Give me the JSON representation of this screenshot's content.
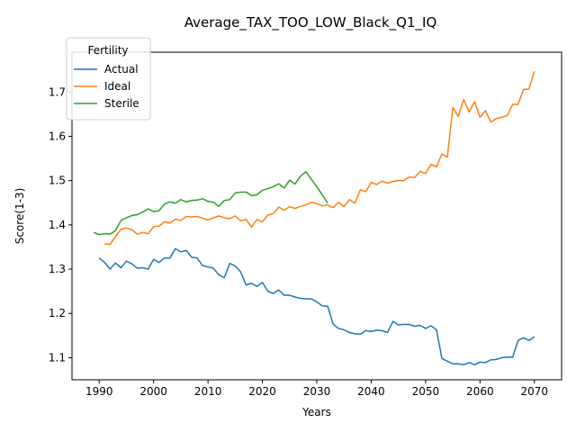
{
  "chart_data": {
    "type": "line",
    "title": "Average_TAX_TOO_LOW_Black_Q1_IQ",
    "xlabel": "Years",
    "ylabel": "Score(1-3)",
    "xlim": [
      1985,
      2075
    ],
    "ylim": [
      1.05,
      1.79
    ],
    "xticks": [
      1990,
      2000,
      2010,
      2020,
      2030,
      2040,
      2050,
      2060,
      2070
    ],
    "yticks": [
      1.1,
      1.2,
      1.3,
      1.4,
      1.5,
      1.6,
      1.7
    ],
    "grid": false,
    "legend": {
      "title": "Fertility",
      "position": "top-left"
    },
    "series": [
      {
        "name": "Actual",
        "color": "#1f77b4",
        "x": [
          1990,
          1991,
          1992,
          1993,
          1994,
          1995,
          1996,
          1997,
          1998,
          1999,
          2000,
          2001,
          2002,
          2003,
          2004,
          2005,
          2006,
          2007,
          2008,
          2009,
          2010,
          2011,
          2012,
          2013,
          2014,
          2015,
          2016,
          2017,
          2018,
          2019,
          2020,
          2021,
          2022,
          2023,
          2024,
          2025,
          2026,
          2027,
          2028,
          2029,
          2030,
          2031,
          2032,
          2033,
          2034,
          2035,
          2036,
          2037,
          2038,
          2039,
          2040,
          2041,
          2042,
          2043,
          2044,
          2045,
          2046,
          2047,
          2048,
          2049,
          2050,
          2051,
          2052,
          2053,
          2054,
          2055,
          2056,
          2057,
          2058,
          2059,
          2060,
          2061,
          2062,
          2063,
          2064,
          2065,
          2066,
          2067,
          2068,
          2069,
          2070
        ],
        "values": [
          1.325,
          1.315,
          1.3,
          1.314,
          1.303,
          1.318,
          1.312,
          1.302,
          1.303,
          1.3,
          1.322,
          1.315,
          1.325,
          1.325,
          1.346,
          1.339,
          1.342,
          1.327,
          1.325,
          1.308,
          1.305,
          1.302,
          1.287,
          1.281,
          1.313,
          1.307,
          1.294,
          1.264,
          1.268,
          1.261,
          1.27,
          1.25,
          1.245,
          1.253,
          1.241,
          1.241,
          1.237,
          1.234,
          1.233,
          1.233,
          1.226,
          1.217,
          1.216,
          1.176,
          1.166,
          1.163,
          1.157,
          1.154,
          1.153,
          1.161,
          1.159,
          1.162,
          1.161,
          1.157,
          1.182,
          1.174,
          1.175,
          1.175,
          1.171,
          1.173,
          1.166,
          1.172,
          1.163,
          1.098,
          1.092,
          1.086,
          1.086,
          1.084,
          1.089,
          1.084,
          1.09,
          1.089,
          1.095,
          1.096,
          1.1,
          1.101,
          1.101,
          1.139,
          1.145,
          1.139,
          1.147
        ]
      },
      {
        "name": "Ideal",
        "color": "#ff7f0e",
        "x": [
          1991,
          1992,
          1993,
          1994,
          1995,
          1996,
          1997,
          1998,
          1999,
          2000,
          2001,
          2002,
          2003,
          2004,
          2005,
          2006,
          2007,
          2008,
          2009,
          2010,
          2011,
          2012,
          2013,
          2014,
          2015,
          2016,
          2017,
          2018,
          2019,
          2020,
          2021,
          2022,
          2023,
          2024,
          2025,
          2026,
          2027,
          2028,
          2029,
          2030,
          2031,
          2032,
          2033,
          2034,
          2035,
          2036,
          2037,
          2038,
          2039,
          2040,
          2041,
          2042,
          2043,
          2044,
          2045,
          2046,
          2047,
          2048,
          2049,
          2050,
          2051,
          2052,
          2053,
          2054,
          2055,
          2056,
          2057,
          2058,
          2059,
          2060,
          2061,
          2062,
          2063,
          2064,
          2065,
          2066,
          2067,
          2068,
          2069,
          2070
        ],
        "values": [
          1.357,
          1.356,
          1.374,
          1.39,
          1.393,
          1.389,
          1.379,
          1.383,
          1.38,
          1.396,
          1.397,
          1.407,
          1.404,
          1.413,
          1.41,
          1.419,
          1.418,
          1.419,
          1.415,
          1.411,
          1.416,
          1.42,
          1.416,
          1.414,
          1.42,
          1.409,
          1.412,
          1.395,
          1.412,
          1.407,
          1.422,
          1.425,
          1.44,
          1.433,
          1.441,
          1.437,
          1.442,
          1.445,
          1.451,
          1.448,
          1.443,
          1.445,
          1.439,
          1.451,
          1.441,
          1.457,
          1.449,
          1.479,
          1.475,
          1.496,
          1.491,
          1.499,
          1.494,
          1.498,
          1.5,
          1.5,
          1.508,
          1.507,
          1.521,
          1.516,
          1.537,
          1.531,
          1.56,
          1.553,
          1.665,
          1.645,
          1.683,
          1.655,
          1.678,
          1.643,
          1.658,
          1.632,
          1.64,
          1.643,
          1.647,
          1.672,
          1.672,
          1.706,
          1.707,
          1.747
        ]
      },
      {
        "name": "Sterile",
        "color": "#2ca02c",
        "x": [
          1989,
          1990,
          1991,
          1992,
          1993,
          1994,
          1995,
          1996,
          1997,
          1998,
          1999,
          2000,
          2001,
          2002,
          2003,
          2004,
          2005,
          2006,
          2007,
          2008,
          2009,
          2010,
          2011,
          2012,
          2013,
          2014,
          2015,
          2016,
          2017,
          2018,
          2019,
          2020,
          2021,
          2022,
          2023,
          2024,
          2025,
          2026,
          2027,
          2028,
          2029,
          2030,
          2031,
          2032
        ],
        "values": [
          1.383,
          1.378,
          1.38,
          1.379,
          1.387,
          1.41,
          1.416,
          1.421,
          1.423,
          1.429,
          1.436,
          1.43,
          1.432,
          1.447,
          1.452,
          1.449,
          1.457,
          1.452,
          1.455,
          1.456,
          1.459,
          1.453,
          1.451,
          1.442,
          1.455,
          1.457,
          1.472,
          1.474,
          1.474,
          1.466,
          1.468,
          1.478,
          1.482,
          1.486,
          1.493,
          1.483,
          1.501,
          1.492,
          1.51,
          1.52,
          1.503,
          1.486,
          1.468,
          1.449
        ]
      }
    ]
  }
}
